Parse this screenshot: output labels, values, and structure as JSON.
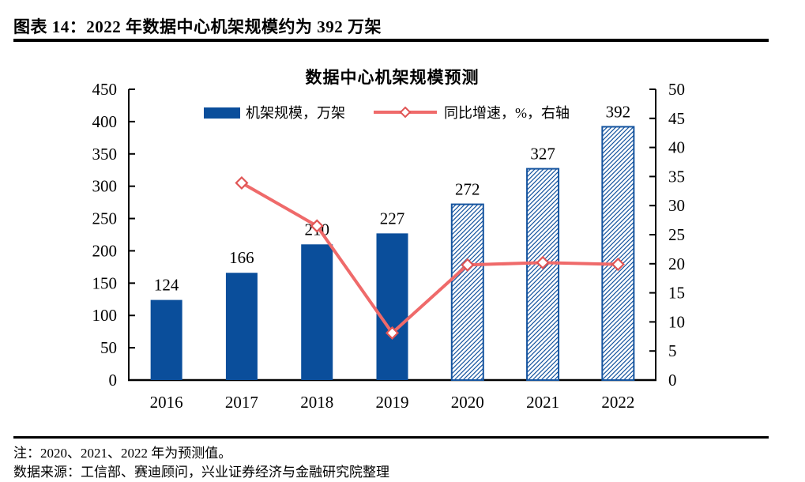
{
  "page": {
    "header_title": "图表 14：2022 年数据中心机架规模约为 392 万架",
    "note_line1": "注：2020、2021、2022 年为预测值。",
    "note_line2": "数据来源：工信部、赛迪顾问，兴业证券经济与金融研究院整理"
  },
  "chart_data": {
    "type": "bar",
    "subtype": "bar-line-combo-dual-axis",
    "title": "数据中心机架规模预测",
    "categories": [
      "2016",
      "2017",
      "2018",
      "2019",
      "2020",
      "2021",
      "2022"
    ],
    "series": [
      {
        "name": "机架规模，万架",
        "type": "bar",
        "axis": "left",
        "values": [
          124,
          166,
          210,
          227,
          272,
          327,
          392
        ],
        "bar_styles": [
          "solid",
          "solid",
          "solid",
          "solid",
          "hatched",
          "hatched",
          "hatched"
        ],
        "data_labels": [
          "124",
          "166",
          "210",
          "227",
          "272",
          "327",
          "392"
        ]
      },
      {
        "name": "同比增速，%，右轴",
        "type": "line",
        "axis": "right",
        "x_start_index": 1,
        "values": [
          33.9,
          26.5,
          8.1,
          19.8,
          20.2,
          19.9
        ]
      }
    ],
    "left_axis": {
      "min": 0,
      "max": 450,
      "step": 50
    },
    "right_axis": {
      "min": 0,
      "max": 50,
      "step": 5
    },
    "grid": false,
    "legend_position": "top",
    "colors": {
      "bar": "#0a4e9b",
      "hatch": "#15549f",
      "line": "#ef6a6a",
      "marker_fill": "#ffffff",
      "marker_stroke": "#e05555",
      "axis": "#000000"
    },
    "notes": "2020-2022 bars are hatched forecast values"
  }
}
